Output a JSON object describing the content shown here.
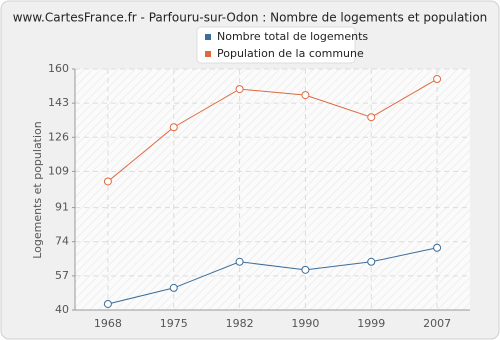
{
  "chart_data": {
    "type": "line",
    "title": "www.CartesFrance.fr - Parfouru-sur-Odon : Nombre de logements et population",
    "y_label": "Logements et population",
    "categories": [
      "1968",
      "1975",
      "1982",
      "1990",
      "1999",
      "2007"
    ],
    "series": [
      {
        "name": "Nombre total de logements",
        "color": "#3d6e99",
        "values": [
          43,
          51,
          64,
          60,
          64,
          71
        ]
      },
      {
        "name": "Population de la commune",
        "color": "#e0683f",
        "values": [
          104,
          131,
          150,
          147,
          136,
          155
        ]
      }
    ],
    "ylim": [
      40,
      160
    ],
    "yticks": [
      40,
      57,
      74,
      91,
      109,
      126,
      143,
      160
    ],
    "grid": true
  }
}
